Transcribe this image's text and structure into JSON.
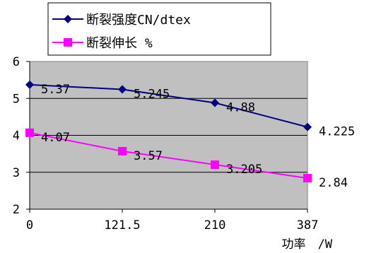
{
  "chart_data": {
    "type": "line",
    "categories": [
      "0",
      "121.5",
      "210",
      "387"
    ],
    "xlabel": "功率　/W",
    "ylabel": "",
    "ylim": [
      2,
      6
    ],
    "yticks": [
      2,
      3,
      4,
      5,
      6
    ],
    "grid": true,
    "plot_background": "#c0c0c0",
    "legend_position": "top",
    "series": [
      {
        "name": "断裂强度CN/dtex",
        "values": [
          5.37,
          5.245,
          4.88,
          4.225
        ],
        "labels": [
          "5.37",
          "5.245",
          "4.88",
          "4.225"
        ],
        "color": "#000080",
        "marker": "diamond"
      },
      {
        "name": "断裂伸长 %",
        "values": [
          4.07,
          3.57,
          3.205,
          2.84
        ],
        "labels": [
          "4.07",
          "3.57",
          "3.205",
          "2.84"
        ],
        "color": "#ff00ff",
        "marker": "square"
      }
    ]
  }
}
